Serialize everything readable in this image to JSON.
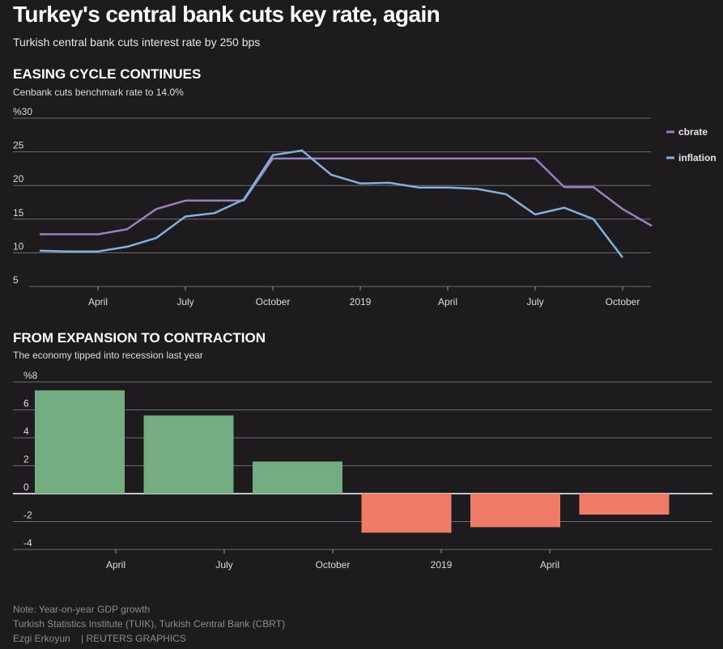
{
  "header": {
    "title": "Turkey's central bank cuts key rate, again",
    "subtitle": "Turkish central bank cuts interest rate by 250 bps"
  },
  "line_section": {
    "title": "EASING CYCLE CONTINUES",
    "subtitle": "Cenbank cuts benchmark rate to 14.0%"
  },
  "bar_section": {
    "title": "FROM EXPANSION TO CONTRACTION",
    "subtitle": "The economy tipped into recession last year"
  },
  "footer": {
    "note": "Note: Year-on-year GDP growth",
    "source": "Turkish Statistics Institute (TUIK), Turkish Central Bank (CBRT)",
    "credit": "Ezgi Erkoyun    | REUTERS GRAPHICS"
  },
  "colors": {
    "cbrate": "#9a7fbd",
    "inflation": "#7fb2e0",
    "positive": "#72ac80",
    "negative": "#f07c68",
    "grid": "#6e6e6e"
  },
  "chart_data": [
    {
      "type": "line",
      "title": "EASING CYCLE CONTINUES",
      "subtitle": "Cenbank cuts benchmark rate to 14.0%",
      "x": [
        "2018-02",
        "2018-03",
        "2018-04",
        "2018-05",
        "2018-06",
        "2018-07",
        "2018-08",
        "2018-09",
        "2018-10",
        "2018-11",
        "2018-12",
        "2019-01",
        "2019-02",
        "2019-03",
        "2019-04",
        "2019-05",
        "2019-06",
        "2019-07",
        "2019-08",
        "2019-09",
        "2019-10",
        "2019-11"
      ],
      "x_tick_labels": [
        "April",
        "July",
        "October",
        "2019",
        "April",
        "July",
        "October"
      ],
      "y_tick_labels": [
        "%30",
        "25",
        "20",
        "15",
        "10",
        "5"
      ],
      "ylim": [
        5,
        30
      ],
      "grid": true,
      "legend_position": "right",
      "series": [
        {
          "name": "cbrate",
          "values": [
            12.75,
            12.75,
            12.75,
            13.5,
            16.5,
            17.75,
            17.75,
            17.75,
            24.0,
            24.0,
            24.0,
            24.0,
            24.0,
            24.0,
            24.0,
            24.0,
            24.0,
            24.0,
            19.75,
            19.75,
            16.5,
            14.0
          ]
        },
        {
          "name": "inflation",
          "values": [
            10.3,
            10.2,
            10.2,
            10.9,
            12.2,
            15.4,
            15.9,
            17.9,
            24.5,
            25.2,
            21.6,
            20.3,
            20.4,
            19.7,
            19.7,
            19.5,
            18.7,
            15.7,
            16.7,
            15.0,
            9.3,
            null
          ]
        }
      ]
    },
    {
      "type": "bar",
      "title": "FROM EXPANSION TO CONTRACTION",
      "subtitle": "The economy tipped into recession last year",
      "categories": [
        "2018 Q1",
        "2018 Q2",
        "2018 Q3",
        "2018 Q4",
        "2019 Q1",
        "2019 Q2"
      ],
      "values": [
        7.4,
        5.6,
        2.3,
        -2.8,
        -2.4,
        -1.5
      ],
      "x_tick_labels": [
        "April",
        "July",
        "October",
        "2019",
        "April"
      ],
      "y_tick_labels": [
        "%8",
        "6",
        "4",
        "2",
        "0",
        "-2",
        "-4"
      ],
      "ylim": [
        -4,
        8
      ],
      "grid": true
    }
  ]
}
